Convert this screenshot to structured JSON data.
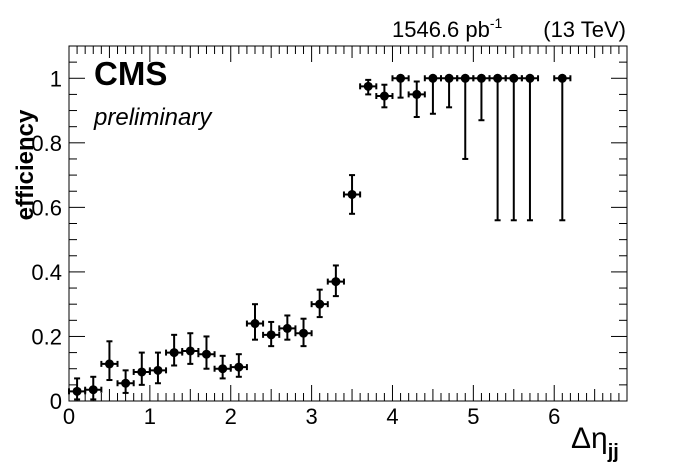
{
  "chart_data": {
    "type": "scatter",
    "header": {
      "lumi_value": "1546.6 pb",
      "lumi_exponent": "-1",
      "energy": "(13 TeV)"
    },
    "experiment": "CMS",
    "status": "preliminary",
    "ylabel": "efficiency",
    "xlabel": {
      "symbol": "Δη",
      "subscript": "jj"
    },
    "xlim": [
      0,
      6.9
    ],
    "ylim": [
      0,
      1.1
    ],
    "x_ticks": [
      "0",
      "1",
      "2",
      "3",
      "4",
      "5",
      "6"
    ],
    "y_ticks": [
      "0",
      "0.2",
      "0.4",
      "0.6",
      "0.8",
      "1"
    ],
    "grid": false,
    "x_bin_half_width": 0.1,
    "series": [
      {
        "points": [
          {
            "x": 0.1,
            "y": 0.03,
            "err_low": 0.025,
            "err_high": 0.04
          },
          {
            "x": 0.3,
            "y": 0.035,
            "err_low": 0.03,
            "err_high": 0.04
          },
          {
            "x": 0.5,
            "y": 0.115,
            "err_low": 0.05,
            "err_high": 0.07
          },
          {
            "x": 0.7,
            "y": 0.055,
            "err_low": 0.03,
            "err_high": 0.04
          },
          {
            "x": 0.9,
            "y": 0.09,
            "err_low": 0.04,
            "err_high": 0.06
          },
          {
            "x": 1.1,
            "y": 0.095,
            "err_low": 0.04,
            "err_high": 0.055
          },
          {
            "x": 1.3,
            "y": 0.15,
            "err_low": 0.04,
            "err_high": 0.055
          },
          {
            "x": 1.5,
            "y": 0.155,
            "err_low": 0.04,
            "err_high": 0.055
          },
          {
            "x": 1.7,
            "y": 0.145,
            "err_low": 0.045,
            "err_high": 0.055
          },
          {
            "x": 1.9,
            "y": 0.1,
            "err_low": 0.03,
            "err_high": 0.04
          },
          {
            "x": 2.1,
            "y": 0.105,
            "err_low": 0.03,
            "err_high": 0.04
          },
          {
            "x": 2.3,
            "y": 0.24,
            "err_low": 0.05,
            "err_high": 0.06
          },
          {
            "x": 2.5,
            "y": 0.205,
            "err_low": 0.035,
            "err_high": 0.04
          },
          {
            "x": 2.7,
            "y": 0.225,
            "err_low": 0.035,
            "err_high": 0.04
          },
          {
            "x": 2.9,
            "y": 0.21,
            "err_low": 0.04,
            "err_high": 0.045
          },
          {
            "x": 3.1,
            "y": 0.3,
            "err_low": 0.04,
            "err_high": 0.045
          },
          {
            "x": 3.3,
            "y": 0.37,
            "err_low": 0.045,
            "err_high": 0.05
          },
          {
            "x": 3.5,
            "y": 0.64,
            "err_low": 0.06,
            "err_high": 0.06
          },
          {
            "x": 3.7,
            "y": 0.975,
            "err_low": 0.025,
            "err_high": 0.02
          },
          {
            "x": 3.9,
            "y": 0.945,
            "err_low": 0.035,
            "err_high": 0.035
          },
          {
            "x": 4.1,
            "y": 1.0,
            "err_low": 0.06,
            "err_high": 0.0
          },
          {
            "x": 4.3,
            "y": 0.95,
            "err_low": 0.07,
            "err_high": 0.04
          },
          {
            "x": 4.5,
            "y": 1.0,
            "err_low": 0.11,
            "err_high": 0.0
          },
          {
            "x": 4.7,
            "y": 1.0,
            "err_low": 0.09,
            "err_high": 0.0
          },
          {
            "x": 4.9,
            "y": 1.0,
            "err_low": 0.25,
            "err_high": 0.0
          },
          {
            "x": 5.1,
            "y": 1.0,
            "err_low": 0.13,
            "err_high": 0.0
          },
          {
            "x": 5.3,
            "y": 1.0,
            "err_low": 0.44,
            "err_high": 0.0
          },
          {
            "x": 5.5,
            "y": 1.0,
            "err_low": 0.44,
            "err_high": 0.0
          },
          {
            "x": 5.7,
            "y": 1.0,
            "err_low": 0.44,
            "err_high": 0.0
          },
          {
            "x": 6.1,
            "y": 1.0,
            "err_low": 0.44,
            "err_high": 0.0
          }
        ]
      }
    ],
    "colors": {
      "marker": "#000000",
      "axis": "#000000"
    }
  }
}
